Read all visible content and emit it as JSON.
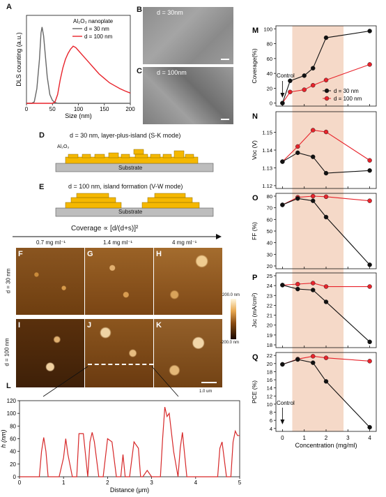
{
  "panels": {
    "A": {
      "letter": "A",
      "legend_title": "Al₂O₃ nanoplate",
      "chart_data": {
        "type": "line",
        "xlabel": "Size (nm)",
        "ylabel": "DLS counting (a.u.)",
        "xlim": [
          0,
          200
        ],
        "x_ticks": [
          "0",
          "50",
          "100",
          "150",
          "200"
        ],
        "series": [
          {
            "name": "d = 30 nm",
            "color": "#666666",
            "x": [
              0,
              10,
              15,
              20,
              25,
              28,
              30,
              33,
              36,
              40,
              45,
              50,
              55,
              60,
              70,
              80,
              100,
              200
            ],
            "y": [
              0,
              0,
              0.5,
              5,
              15,
              24,
              26,
              23,
              17,
              9,
              3,
              1,
              0.3,
              0,
              0,
              0,
              0,
              0
            ]
          },
          {
            "name": "d = 100 nm",
            "color": "#e8232b",
            "x": [
              0,
              40,
              50,
              55,
              60,
              65,
              70,
              75,
              80,
              85,
              90,
              95,
              100,
              110,
              120,
              130,
              140,
              150,
              160,
              170,
              180,
              190,
              200
            ],
            "y": [
              0,
              0,
              0,
              0.5,
              3,
              8,
              12,
              15,
              17,
              18.5,
              19.5,
              19,
              18,
              16,
              14,
              12,
              10,
              8.5,
              7,
              6,
              5,
              4.2,
              3.5
            ]
          }
        ]
      }
    },
    "B": {
      "letter": "B",
      "label": "d = 30nm"
    },
    "C": {
      "letter": "C",
      "label": "d = 100nm"
    },
    "D": {
      "letter": "D",
      "title": "d = 30 nm, layer-plus-island (S-K mode)",
      "material": "Al₂O₃",
      "substrate": "Substrate"
    },
    "E": {
      "letter": "E",
      "title": "d = 100 nm, island formation (V-W mode)",
      "substrate": "Substrate"
    },
    "coverage_label": "Coverage ∝ [d/(d+s)]²",
    "afm": {
      "columns": [
        "0.7 mg ml⁻¹",
        "1.4 mg ml⁻¹",
        "4 mg ml⁻¹"
      ],
      "rows": [
        "d = 30 nm",
        "d = 100 nm"
      ],
      "letters": [
        "F",
        "G",
        "H",
        "I",
        "J",
        "K"
      ],
      "scale_max": "200.0 nm",
      "scale_min": "-200.0 nm",
      "scale_bar": "1.0 um"
    },
    "L": {
      "letter": "L",
      "chart_data": {
        "type": "line",
        "xlabel": "Distance (μm)",
        "ylabel": "h (nm)",
        "xlim": [
          0,
          5
        ],
        "ylim": [
          0,
          120
        ],
        "x_ticks": [
          "0",
          "1",
          "2",
          "3",
          "4",
          "5"
        ],
        "y_ticks": [
          "0",
          "20",
          "40",
          "60",
          "80",
          "100",
          "120"
        ],
        "series": [
          {
            "color": "#d62728",
            "x": [
              0,
              0.45,
              0.5,
              0.55,
              0.6,
              0.65,
              0.7,
              0.9,
              1.0,
              1.05,
              1.1,
              1.2,
              1.3,
              1.35,
              1.45,
              1.55,
              1.6,
              1.65,
              1.7,
              1.8,
              1.9,
              2.0,
              2.1,
              2.2,
              2.3,
              2.35,
              2.4,
              2.5,
              2.6,
              2.7,
              2.75,
              2.8,
              2.9,
              3.0,
              3.1,
              3.2,
              3.25,
              3.3,
              3.35,
              3.4,
              3.45,
              3.5,
              3.6,
              3.65,
              3.7,
              3.8,
              3.9,
              4.0,
              4.1,
              4.2,
              4.4,
              4.5,
              4.55,
              4.6,
              4.7,
              4.8,
              4.85,
              4.9,
              4.95,
              5.0
            ],
            "y": [
              0,
              0,
              40,
              62,
              40,
              0,
              0,
              0,
              30,
              60,
              35,
              0,
              0,
              68,
              68,
              0,
              55,
              70,
              55,
              0,
              0,
              60,
              55,
              0,
              0,
              35,
              0,
              0,
              55,
              45,
              0,
              0,
              10,
              0,
              0,
              0,
              60,
              110,
              95,
              100,
              70,
              40,
              0,
              45,
              70,
              0,
              0,
              0,
              0,
              0,
              0,
              0,
              45,
              55,
              0,
              0,
              55,
              72,
              65,
              65
            ]
          }
        ]
      }
    },
    "right": {
      "xlabel": "Concentration (mg/ml)",
      "x_ticks": [
        "0",
        "1",
        "2",
        "3",
        "4"
      ],
      "control_label": "Control",
      "legend": [
        "d = 30 nm",
        "d = 100 nm"
      ],
      "M": {
        "letter": "M",
        "chart_data": {
          "type": "line",
          "ylabel": "Coverage(%)",
          "ylim": [
            0,
            100
          ],
          "y_ticks": [
            "0",
            "20",
            "40",
            "60",
            "80",
            "100"
          ],
          "x": [
            0,
            0.35,
            0.7,
            1.4,
            2,
            4
          ],
          "series": [
            {
              "name": "d = 30 nm",
              "color": "#111111",
              "x": [
                0,
                0.35,
                1,
                1.4,
                2,
                4
              ],
              "y": [
                0,
                30,
                37,
                47,
                88,
                97
              ]
            },
            {
              "name": "d = 100 nm",
              "color": "#e8232b",
              "x": [
                0,
                0.35,
                1,
                1.4,
                2,
                4
              ],
              "y": [
                0,
                15,
                18,
                24,
                31,
                52
              ]
            }
          ]
        }
      },
      "N": {
        "letter": "N",
        "chart_data": {
          "type": "line",
          "ylabel": "Voc (V)",
          "ylim": [
            1.12,
            1.16
          ],
          "y_ticks": [
            "1.12",
            "1.13",
            "1.14",
            "1.15"
          ],
          "series": [
            {
              "name": "d = 30 nm",
              "color": "#111111",
              "x": [
                0,
                0.7,
                1.4,
                2,
                4
              ],
              "y": [
                1.1335,
                1.1385,
                1.1362,
                1.127,
                1.1285
              ]
            },
            {
              "name": "d = 100 nm",
              "color": "#e8232b",
              "x": [
                0,
                0.7,
                1.4,
                2,
                4
              ],
              "y": [
                1.1335,
                1.142,
                1.1512,
                1.1502,
                1.1342
              ]
            }
          ]
        }
      },
      "O": {
        "letter": "O",
        "chart_data": {
          "type": "line",
          "ylabel": "FF (%)",
          "ylim": [
            20,
            80
          ],
          "y_ticks": [
            "20",
            "30",
            "40",
            "50",
            "60",
            "70",
            "80"
          ],
          "series": [
            {
              "name": "d = 30 nm",
              "color": "#111111",
              "x": [
                0,
                0.7,
                1.4,
                2,
                4
              ],
              "y": [
                72.5,
                78,
                76,
                62,
                21
              ]
            },
            {
              "name": "d = 100 nm",
              "color": "#e8232b",
              "x": [
                0,
                0.7,
                1.4,
                2,
                4
              ],
              "y": [
                72.5,
                79,
                80,
                79.5,
                76
              ]
            }
          ]
        }
      },
      "P": {
        "letter": "P",
        "chart_data": {
          "type": "line",
          "ylabel": "Jsc (mA/cm²)",
          "ylim": [
            18,
            25
          ],
          "y_ticks": [
            "18",
            "19",
            "20",
            "21",
            "22",
            "23",
            "24",
            "25"
          ],
          "series": [
            {
              "name": "d = 30 nm",
              "color": "#111111",
              "x": [
                0,
                0.7,
                1.4,
                2,
                4
              ],
              "y": [
                24.05,
                23.65,
                23.55,
                22.35,
                18.3
              ]
            },
            {
              "name": "d = 100 nm",
              "color": "#e8232b",
              "x": [
                0,
                0.7,
                1.4,
                2,
                4
              ],
              "y": [
                24.05,
                24.15,
                24.25,
                23.9,
                23.9
              ]
            }
          ]
        }
      },
      "Q": {
        "letter": "Q",
        "chart_data": {
          "type": "line",
          "ylabel": "PCE (%)",
          "ylim": [
            4,
            22
          ],
          "y_ticks": [
            "4",
            "6",
            "8",
            "10",
            "12",
            "14",
            "16",
            "18",
            "20",
            "22"
          ],
          "series": [
            {
              "name": "d = 30 nm",
              "color": "#111111",
              "x": [
                0,
                0.7,
                1.4,
                2,
                4
              ],
              "y": [
                19.8,
                21,
                20.2,
                15.6,
                4.3
              ]
            },
            {
              "name": "d = 100 nm",
              "color": "#e8232b",
              "x": [
                0,
                0.7,
                1.4,
                2,
                4
              ],
              "y": [
                19.8,
                21.1,
                21.8,
                21.4,
                20.6
              ]
            }
          ]
        }
      }
    }
  }
}
